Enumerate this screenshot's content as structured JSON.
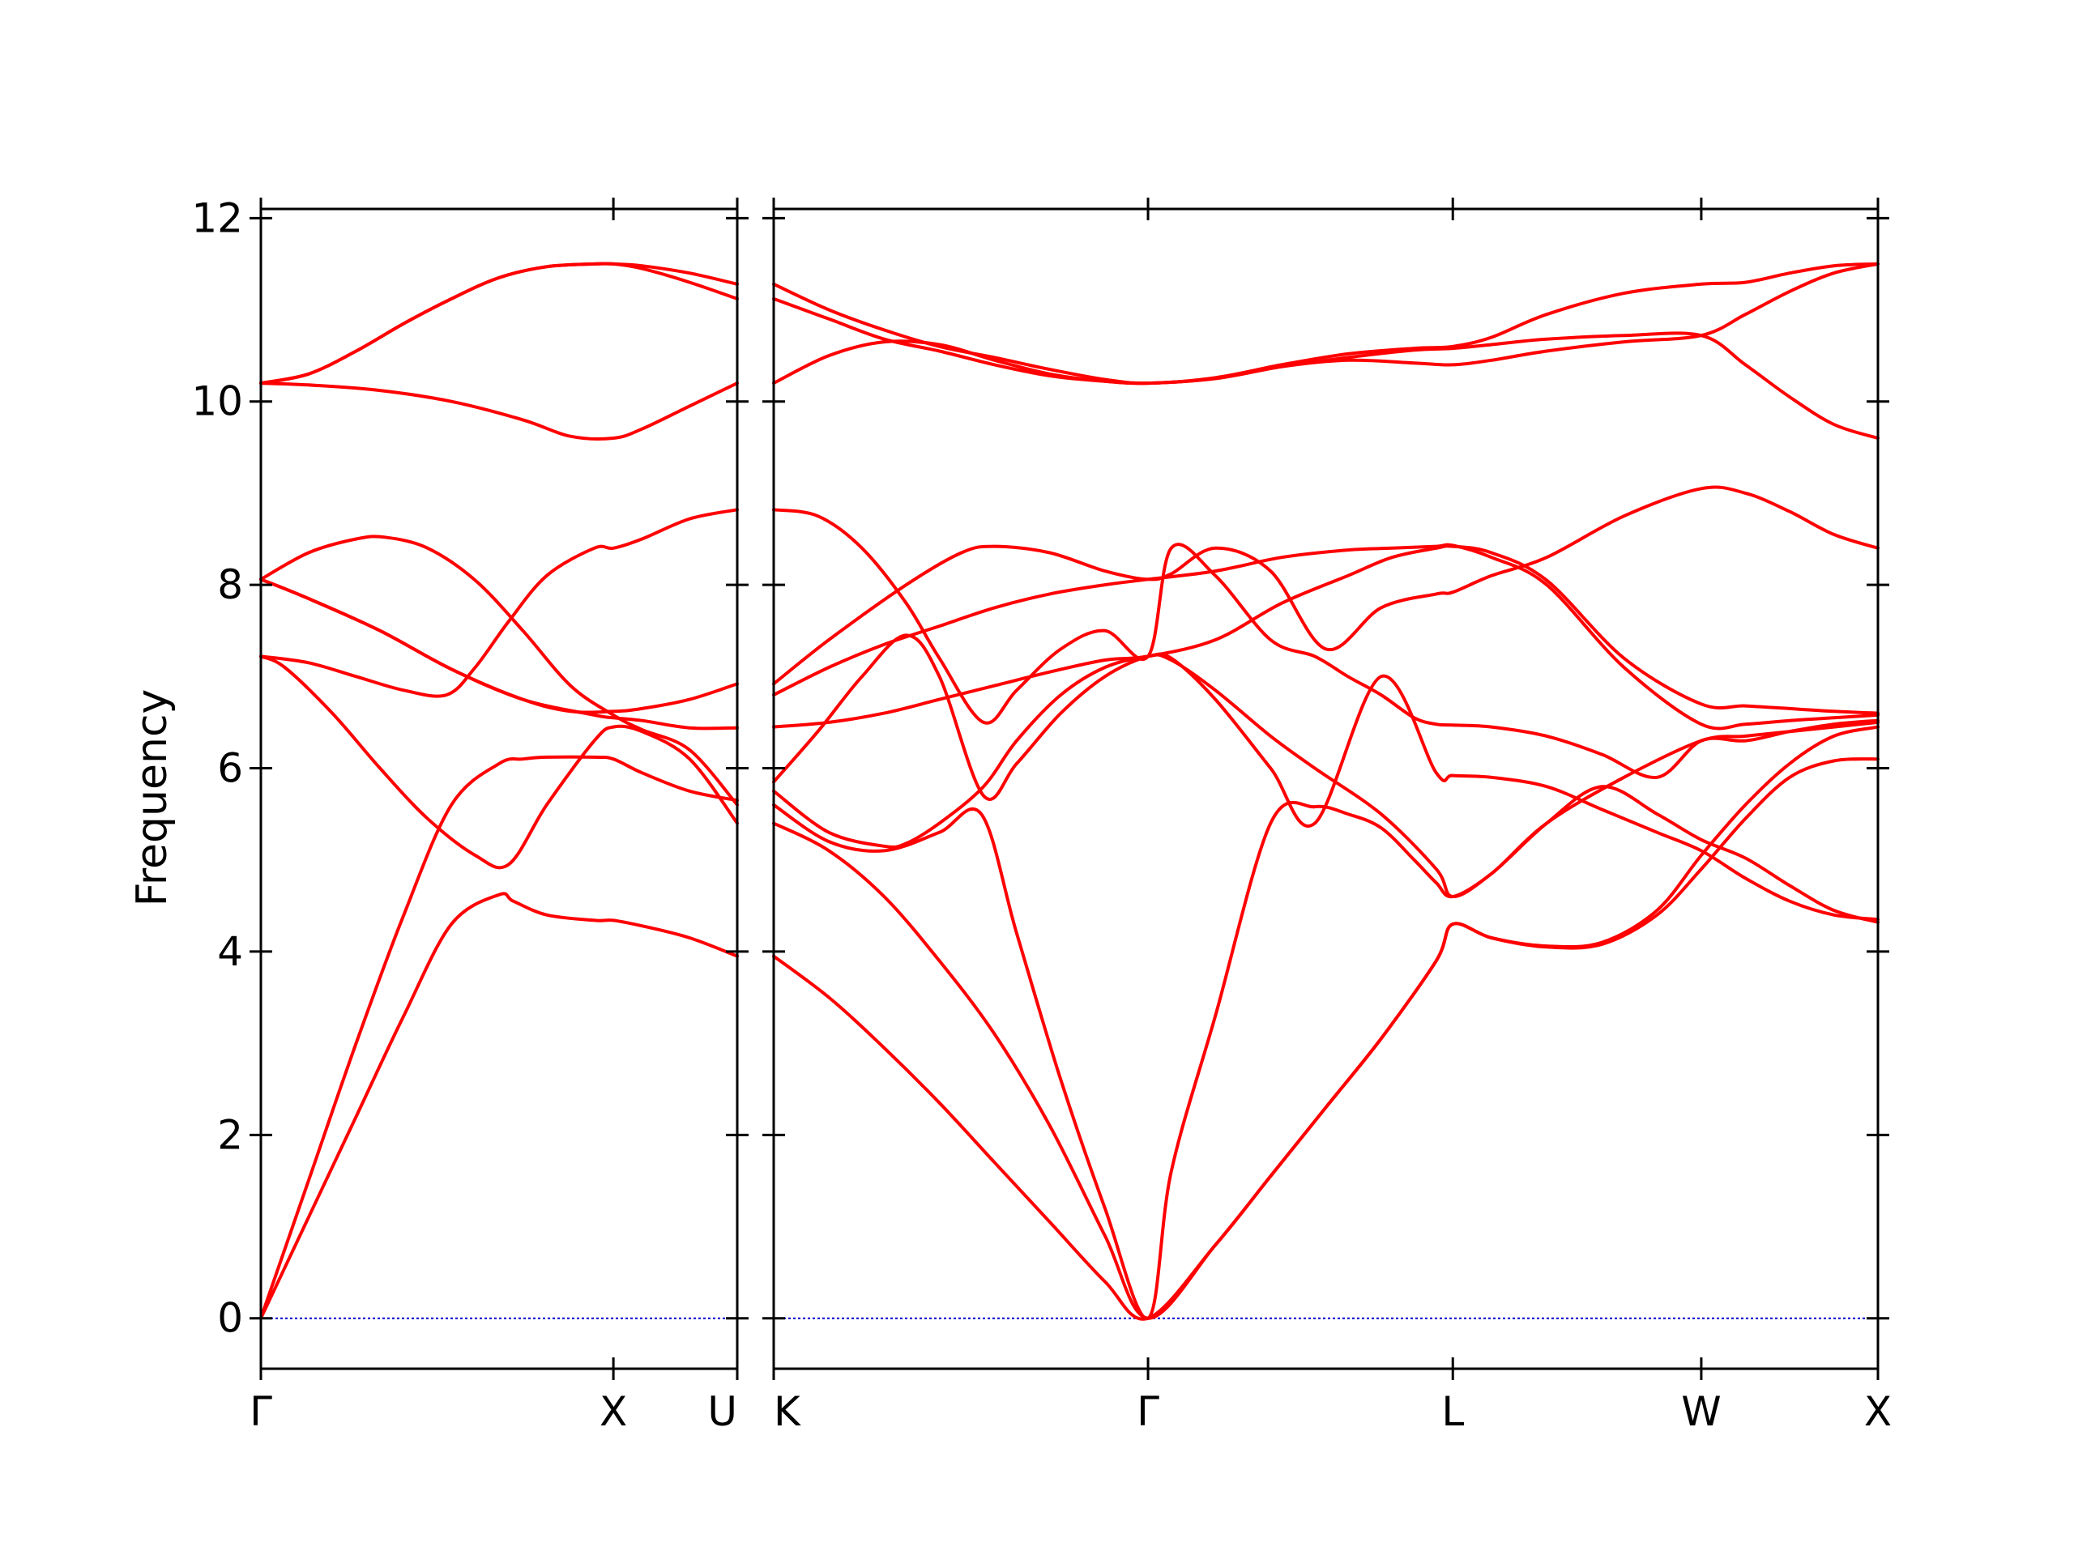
{
  "chart_data": {
    "type": "line",
    "title": "",
    "ylabel": "Frequency",
    "ylim": [
      -0.55,
      12.1
    ],
    "yticks": [
      0,
      2,
      4,
      6,
      8,
      10,
      12
    ],
    "ytick_labels": [
      "0",
      "2",
      "4",
      "6",
      "8",
      "10",
      "12"
    ],
    "grid": false,
    "legend": "none",
    "line_color": "#ff0000",
    "zero_line_color": "#0000cc",
    "panels": [
      {
        "name": "gamma-x-u",
        "xlim": [
          0,
          1
        ],
        "ticks": [
          {
            "x": 0,
            "label": "Γ"
          },
          {
            "x": 0.74,
            "label": "X"
          },
          {
            "x": 1,
            "label": "U"
          }
        ],
        "bands": [
          {
            "x": [
              0,
              0.1,
              0.2,
              0.3,
              0.4,
              0.5,
              0.55,
              0.6,
              0.7,
              0.74,
              0.8,
              0.9,
              1.0
            ],
            "y": [
              0,
              1.5,
              3.0,
              4.4,
              5.6,
              6.05,
              6.1,
              6.12,
              6.12,
              6.1,
              5.95,
              5.75,
              5.65
            ]
          },
          {
            "x": [
              0,
              0.1,
              0.2,
              0.3,
              0.4,
              0.5,
              0.53,
              0.6,
              0.7,
              0.74,
              0.8,
              0.9,
              1.0
            ],
            "y": [
              0,
              1.1,
              2.2,
              3.3,
              4.3,
              4.62,
              4.55,
              4.4,
              4.34,
              4.34,
              4.28,
              4.15,
              3.95
            ]
          },
          {
            "x": [
              0,
              0.05,
              0.15,
              0.25,
              0.35,
              0.45,
              0.52,
              0.6,
              0.7,
              0.74,
              0.8,
              0.9,
              1.0
            ],
            "y": [
              7.22,
              7.1,
              6.6,
              6.0,
              5.45,
              5.05,
              4.95,
              5.6,
              6.3,
              6.45,
              6.4,
              6.1,
              5.4
            ]
          },
          {
            "x": [
              0,
              0.1,
              0.2,
              0.3,
              0.39,
              0.45,
              0.52,
              0.6,
              0.7,
              0.74,
              0.8,
              0.9,
              1.0
            ],
            "y": [
              7.22,
              7.15,
              7.0,
              6.85,
              6.8,
              7.1,
              7.6,
              8.1,
              8.4,
              8.4,
              8.5,
              8.72,
              8.82
            ]
          },
          {
            "x": [
              0,
              0.1,
              0.25,
              0.4,
              0.55,
              0.7,
              0.74,
              0.8,
              0.9,
              1.0
            ],
            "y": [
              8.06,
              7.85,
              7.5,
              7.08,
              6.75,
              6.58,
              6.55,
              6.52,
              6.44,
              6.44
            ]
          },
          {
            "x": [
              0,
              0.1,
              0.2,
              0.26,
              0.35,
              0.45,
              0.55,
              0.65,
              0.74,
              0.8,
              0.9,
              1.0
            ],
            "y": [
              8.06,
              8.35,
              8.5,
              8.52,
              8.4,
              8.05,
              7.5,
              6.9,
              6.58,
              6.42,
              6.2,
              5.6
            ]
          },
          {
            "x": [
              0,
              0.1,
              0.25,
              0.4,
              0.55,
              0.65,
              0.74,
              0.8,
              0.9,
              1.0
            ],
            "y": [
              8.06,
              7.85,
              7.5,
              7.08,
              6.75,
              6.62,
              6.62,
              6.65,
              6.75,
              6.92
            ]
          },
          {
            "x": [
              0,
              0.1,
              0.25,
              0.4,
              0.55,
              0.65,
              0.74,
              0.8,
              0.9,
              1.0
            ],
            "y": [
              10.2,
              10.18,
              10.12,
              10.0,
              9.8,
              9.62,
              9.6,
              9.7,
              9.95,
              10.2
            ]
          },
          {
            "x": [
              0,
              0.1,
              0.2,
              0.3,
              0.4,
              0.5,
              0.6,
              0.7,
              0.74,
              0.8,
              0.9,
              1.0
            ],
            "y": [
              10.2,
              10.3,
              10.55,
              10.85,
              11.12,
              11.35,
              11.47,
              11.5,
              11.5,
              11.45,
              11.3,
              11.12
            ]
          },
          {
            "x": [
              0,
              0.1,
              0.2,
              0.3,
              0.4,
              0.5,
              0.6,
              0.7,
              0.74,
              0.8,
              0.9,
              1.0
            ],
            "y": [
              10.2,
              10.3,
              10.55,
              10.85,
              11.12,
              11.35,
              11.47,
              11.5,
              11.5,
              11.48,
              11.4,
              11.28
            ]
          }
        ]
      },
      {
        "name": "k-gamma-l-w-x",
        "xlim": [
          0,
          1
        ],
        "ticks": [
          {
            "x": 0,
            "label": "K"
          },
          {
            "x": 0.339,
            "label": "Γ"
          },
          {
            "x": 0.615,
            "label": "L"
          },
          {
            "x": 0.84,
            "label": "W"
          },
          {
            "x": 1,
            "label": "X"
          }
        ],
        "bands": [
          {
            "x": [
              0,
              0.05,
              0.1,
              0.15,
              0.2,
              0.25,
              0.3,
              0.339,
              0.4,
              0.45,
              0.5,
              0.55,
              0.6,
              0.615,
              0.65,
              0.7,
              0.75,
              0.8,
              0.84,
              0.88,
              0.92,
              0.96,
              1.0
            ],
            "y": [
              3.95,
              3.5,
              2.95,
              2.35,
              1.7,
              1.05,
              0.4,
              0,
              0.8,
              1.55,
              2.3,
              3.05,
              3.9,
              4.3,
              4.15,
              4.05,
              4.08,
              4.4,
              4.9,
              5.45,
              5.9,
              6.08,
              6.1
            ]
          },
          {
            "x": [
              0,
              0.05,
              0.1,
              0.15,
              0.2,
              0.25,
              0.3,
              0.339,
              0.4,
              0.45,
              0.5,
              0.55,
              0.6,
              0.615,
              0.65,
              0.7,
              0.75,
              0.8,
              0.84,
              0.88,
              0.92,
              0.96,
              1.0
            ],
            "y": [
              5.4,
              5.1,
              4.6,
              3.9,
              3.1,
              2.1,
              0.9,
              0,
              0.8,
              1.55,
              2.3,
              3.05,
              3.9,
              4.3,
              4.15,
              4.06,
              4.1,
              4.45,
              5.05,
              5.6,
              6.05,
              6.35,
              6.45
            ]
          },
          {
            "x": [
              0,
              0.05,
              0.1,
              0.15,
              0.188,
              0.22,
              0.26,
              0.3,
              0.339,
              0.36,
              0.4,
              0.45,
              0.49,
              0.52,
              0.55,
              0.58,
              0.6,
              0.615,
              0.65,
              0.7,
              0.75,
              0.8,
              0.84,
              0.88,
              0.92,
              0.96,
              1.0
            ],
            "y": [
              5.6,
              5.2,
              5.1,
              5.3,
              5.5,
              4.2,
              2.6,
              1.2,
              0,
              1.6,
              3.3,
              5.4,
              5.58,
              5.5,
              5.35,
              5.0,
              4.75,
              4.6,
              4.85,
              5.4,
              5.8,
              5.5,
              5.22,
              5.02,
              4.72,
              4.45,
              4.32
            ]
          },
          {
            "x": [
              0,
              0.05,
              0.1,
              0.12,
              0.15,
              0.19,
              0.22,
              0.26,
              0.3,
              0.339,
              0.36,
              0.4,
              0.45,
              0.49,
              0.55,
              0.6,
              0.615,
              0.65,
              0.7,
              0.75,
              0.8,
              0.84,
              0.88,
              0.92,
              0.96,
              1.0
            ],
            "y": [
              5.75,
              5.3,
              5.15,
              5.18,
              5.4,
              5.8,
              6.3,
              6.8,
              7.1,
              7.22,
              7.2,
              6.75,
              6.0,
              5.4,
              7.0,
              5.95,
              5.92,
              5.9,
              5.8,
              5.55,
              5.3,
              5.1,
              4.8,
              4.55,
              4.4,
              4.35
            ]
          },
          {
            "x": [
              0,
              0.04,
              0.08,
              0.12,
              0.15,
              0.19,
              0.22,
              0.26,
              0.3,
              0.339,
              0.36,
              0.4,
              0.45,
              0.49,
              0.55,
              0.6,
              0.615,
              0.65,
              0.7,
              0.77,
              0.84,
              0.88,
              0.92,
              0.96,
              1.0
            ],
            "y": [
              5.85,
              6.4,
              7.0,
              7.45,
              7.0,
              5.7,
              6.05,
              6.6,
              7.0,
              7.22,
              7.18,
              6.85,
              6.35,
              6.0,
              5.5,
              4.9,
              4.6,
              4.85,
              5.4,
              5.9,
              6.3,
              6.35,
              6.4,
              6.45,
              6.5
            ]
          },
          {
            "x": [
              0,
              0.05,
              0.1,
              0.15,
              0.2,
              0.25,
              0.3,
              0.339,
              0.4,
              0.46,
              0.52,
              0.56,
              0.6,
              0.615,
              0.65,
              0.7,
              0.77,
              0.84,
              0.88,
              0.92,
              0.96,
              1.0
            ],
            "y": [
              6.45,
              6.5,
              6.6,
              6.75,
              6.9,
              7.05,
              7.18,
              7.22,
              7.4,
              7.8,
              8.1,
              8.3,
              8.4,
              8.42,
              8.35,
              8.05,
              7.2,
              6.7,
              6.68,
              6.65,
              6.62,
              6.6
            ]
          },
          {
            "x": [
              0,
              0.05,
              0.1,
              0.15,
              0.2,
              0.25,
              0.3,
              0.339,
              0.4,
              0.46,
              0.52,
              0.56,
              0.6,
              0.615,
              0.65,
              0.7,
              0.77,
              0.84,
              0.88,
              0.92,
              0.96,
              1.0
            ],
            "y": [
              6.8,
              7.1,
              7.35,
              7.55,
              7.75,
              7.9,
              8.0,
              8.06,
              8.15,
              8.3,
              8.38,
              8.4,
              8.42,
              8.43,
              8.3,
              8.0,
              7.1,
              6.48,
              6.48,
              6.52,
              6.55,
              6.58
            ]
          },
          {
            "x": [
              0,
              0.05,
              0.12,
              0.17,
              0.2,
              0.25,
              0.3,
              0.339,
              0.36,
              0.4,
              0.45,
              0.5,
              0.55,
              0.6,
              0.615,
              0.65,
              0.7,
              0.77,
              0.84,
              0.88,
              0.92,
              0.96,
              1.0
            ],
            "y": [
              6.92,
              7.4,
              8.0,
              8.35,
              8.42,
              8.35,
              8.15,
              8.06,
              8.12,
              8.4,
              8.15,
              7.3,
              7.75,
              7.9,
              7.92,
              8.1,
              8.3,
              8.75,
              9.05,
              9.0,
              8.8,
              8.55,
              8.4
            ]
          },
          {
            "x": [
              0,
              0.04,
              0.08,
              0.12,
              0.15,
              0.19,
              0.22,
              0.26,
              0.3,
              0.339,
              0.36,
              0.4,
              0.45,
              0.49,
              0.52,
              0.55,
              0.58,
              0.6,
              0.615,
              0.65,
              0.7,
              0.75,
              0.8,
              0.84,
              0.88,
              0.92,
              0.96,
              1.0
            ],
            "y": [
              8.82,
              8.75,
              8.4,
              7.8,
              7.2,
              6.5,
              6.85,
              7.3,
              7.5,
              7.22,
              8.4,
              8.1,
              7.4,
              7.22,
              7.0,
              6.8,
              6.55,
              6.48,
              6.47,
              6.45,
              6.35,
              6.15,
              5.9,
              6.3,
              6.3,
              6.4,
              6.48,
              6.52
            ]
          },
          {
            "x": [
              0,
              0.05,
              0.1,
              0.15,
              0.2,
              0.25,
              0.3,
              0.339,
              0.4,
              0.46,
              0.52,
              0.58,
              0.615,
              0.65,
              0.7,
              0.77,
              0.84,
              0.88,
              0.92,
              0.96,
              1.0
            ],
            "y": [
              10.2,
              10.5,
              10.65,
              10.62,
              10.45,
              10.3,
              10.22,
              10.2,
              10.25,
              10.38,
              10.48,
              10.56,
              10.58,
              10.62,
              10.68,
              10.72,
              10.72,
              10.4,
              10.05,
              9.75,
              9.6
            ]
          },
          {
            "x": [
              0,
              0.05,
              0.1,
              0.15,
              0.2,
              0.25,
              0.3,
              0.339,
              0.4,
              0.46,
              0.52,
              0.58,
              0.615,
              0.65,
              0.7,
              0.77,
              0.84,
              0.88,
              0.92,
              0.96,
              1.0
            ],
            "y": [
              11.12,
              10.9,
              10.68,
              10.55,
              10.4,
              10.28,
              10.22,
              10.2,
              10.25,
              10.38,
              10.45,
              10.42,
              10.4,
              10.45,
              10.55,
              10.65,
              10.72,
              10.95,
              11.2,
              11.4,
              11.5
            ]
          },
          {
            "x": [
              0,
              0.05,
              0.1,
              0.15,
              0.2,
              0.25,
              0.3,
              0.339,
              0.4,
              0.46,
              0.52,
              0.58,
              0.615,
              0.65,
              0.7,
              0.77,
              0.84,
              0.88,
              0.92,
              0.96,
              1.0
            ],
            "y": [
              11.28,
              11.0,
              10.78,
              10.6,
              10.48,
              10.35,
              10.24,
              10.2,
              10.26,
              10.4,
              10.52,
              10.58,
              10.6,
              10.7,
              10.95,
              11.18,
              11.28,
              11.3,
              11.4,
              11.48,
              11.5
            ]
          }
        ]
      }
    ]
  }
}
